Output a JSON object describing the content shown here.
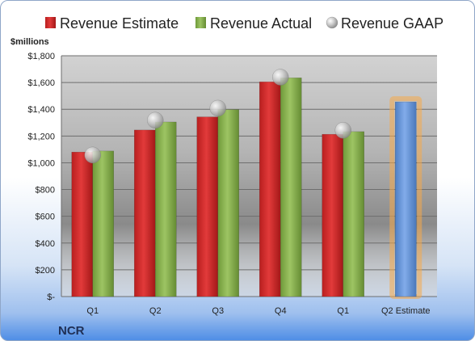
{
  "chart_data": {
    "type": "bar",
    "categories": [
      "Q1",
      "Q2",
      "Q3",
      "Q4",
      "Q1",
      "Q2 Estimate"
    ],
    "series": [
      {
        "name": "Revenue Estimate",
        "values": [
          1080,
          1245,
          1343,
          1605,
          1213,
          null
        ],
        "color": "#d42b2b"
      },
      {
        "name": "Revenue Actual",
        "values": [
          1088,
          1305,
          1398,
          1635,
          1233,
          null
        ],
        "color": "#8eb455"
      },
      {
        "name": "Revenue GAAP",
        "values": [
          1058,
          1318,
          1408,
          1640,
          1243,
          null
        ],
        "color": "#b8b8b8",
        "marker": "sphere"
      }
    ],
    "estimate": {
      "category": "Q2 Estimate",
      "value": 1455,
      "color": "#6d9ad8",
      "glow_color": "#f5a94a"
    },
    "ylabel": "$millions",
    "ylim": [
      0,
      1800
    ],
    "yticks": [
      0,
      200,
      400,
      600,
      800,
      1000,
      1200,
      1400,
      1600,
      1800
    ],
    "ytick_labels": [
      "$-",
      "$200",
      "$400",
      "$600",
      "$800",
      "$1,000",
      "$1,200",
      "$1,400",
      "$1,600",
      "$1,800"
    ],
    "grid": true,
    "legend": "top",
    "company": "NCR"
  }
}
